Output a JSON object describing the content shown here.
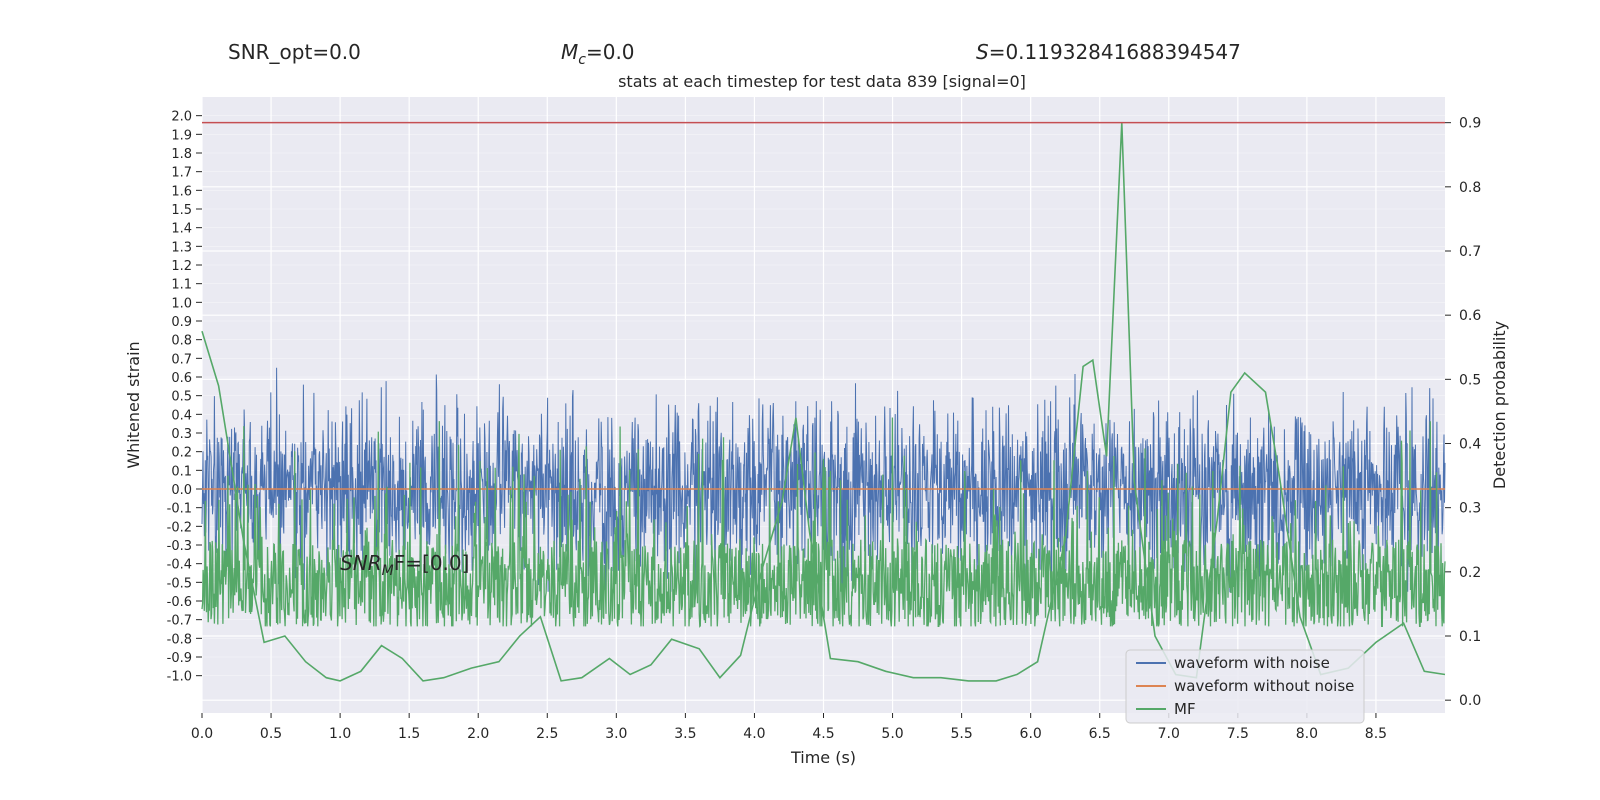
{
  "header": {
    "snr_opt": "SNR_opt=0.0",
    "mc_symbol": "M",
    "mc_sub": "c",
    "mc_value": "=0.0",
    "s_symbol": "S",
    "s_value": "=0.11932841688394547"
  },
  "chart_data": {
    "type": "line",
    "title": "stats at each timestep for test data 839 [signal=0]",
    "xlabel": "Time (s)",
    "ylabel_left": "Whitened strain",
    "ylabel_right": "Detection probability",
    "xlim": [
      0.0,
      9.0
    ],
    "x_ticks": [
      "0.0",
      "0.5",
      "1.0",
      "1.5",
      "2.0",
      "2.5",
      "3.0",
      "3.5",
      "4.0",
      "4.5",
      "5.0",
      "5.5",
      "6.0",
      "6.5",
      "7.0",
      "7.5",
      "8.0",
      "8.5"
    ],
    "y_right_lim": [
      -0.02,
      0.94
    ],
    "y_right_ticks": [
      "0.0",
      "0.1",
      "0.2",
      "0.3",
      "0.4",
      "0.5",
      "0.6",
      "0.7",
      "0.8",
      "0.9"
    ],
    "y_left_lim": [
      -1.2,
      2.1
    ],
    "y_left_ticks": [
      "-1.0",
      "-0.9",
      "-0.8",
      "-0.7",
      "-0.6",
      "-0.5",
      "-0.4",
      "-0.3",
      "-0.2",
      "-0.1",
      "0.0",
      "0.1",
      "0.2",
      "0.3",
      "0.4",
      "0.5",
      "0.6",
      "0.7",
      "0.8",
      "0.9",
      "1.0",
      "1.1",
      "1.2",
      "1.3",
      "1.4",
      "1.5",
      "1.6",
      "1.7",
      "1.8",
      "1.9",
      "2.0"
    ],
    "threshold": 0.9,
    "annotation": {
      "base": "SNR",
      "sub": "M",
      "rest": "F=[0.0]"
    },
    "legend": {
      "placement": "lower-right",
      "items": [
        "waveform with noise",
        "waveform without noise",
        "MF"
      ]
    },
    "colors": {
      "noise": "#4c72b0",
      "clean": "#dd8452",
      "mf": "#55a868",
      "threshold": "#c44e52",
      "plot_bg": "#eaeaf2",
      "grid": "#ffffff"
    },
    "series": [
      {
        "name": "waveform with noise",
        "axis": "left",
        "amplitude_approx": [
          -0.55,
          0.65
        ]
      },
      {
        "name": "waveform without noise",
        "axis": "left",
        "values": [
          0.0
        ]
      },
      {
        "name": "MF",
        "axis": "right",
        "x": [
          0.0,
          0.12,
          0.3,
          0.45,
          0.6,
          0.75,
          0.9,
          1.0,
          1.15,
          1.3,
          1.45,
          1.6,
          1.75,
          1.95,
          2.15,
          2.3,
          2.45,
          2.6,
          2.75,
          2.95,
          3.1,
          3.25,
          3.4,
          3.6,
          3.75,
          3.9,
          4.05,
          4.2,
          4.3,
          4.4,
          4.55,
          4.75,
          4.95,
          5.15,
          5.35,
          5.55,
          5.75,
          5.9,
          6.05,
          6.25,
          6.38,
          6.45,
          6.55,
          6.66,
          6.75,
          6.9,
          7.05,
          7.2,
          7.35,
          7.45,
          7.55,
          7.7,
          7.8,
          7.95,
          8.1,
          8.3,
          8.5,
          8.7,
          8.85,
          9.0
        ],
        "values": [
          0.575,
          0.49,
          0.25,
          0.09,
          0.1,
          0.06,
          0.035,
          0.03,
          0.045,
          0.085,
          0.065,
          0.03,
          0.035,
          0.05,
          0.06,
          0.1,
          0.13,
          0.03,
          0.035,
          0.065,
          0.04,
          0.055,
          0.095,
          0.08,
          0.035,
          0.07,
          0.2,
          0.31,
          0.44,
          0.26,
          0.065,
          0.06,
          0.045,
          0.035,
          0.035,
          0.03,
          0.03,
          0.04,
          0.06,
          0.25,
          0.52,
          0.53,
          0.38,
          0.9,
          0.34,
          0.1,
          0.04,
          0.035,
          0.28,
          0.48,
          0.51,
          0.48,
          0.35,
          0.13,
          0.04,
          0.05,
          0.09,
          0.12,
          0.045,
          0.04
        ]
      }
    ]
  }
}
